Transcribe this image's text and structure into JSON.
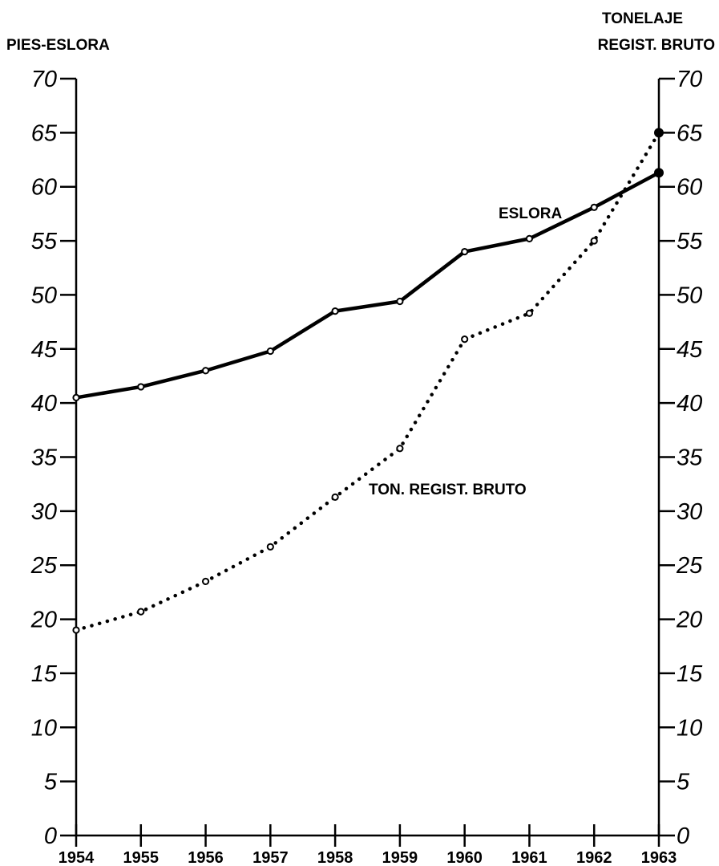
{
  "chart_data": {
    "type": "line",
    "title": "",
    "y_left_label": "PIES-ESLORA",
    "y_right_label_lines": [
      "TONELAJE",
      "REGIST. BRUTO"
    ],
    "categories": [
      "1954",
      "1955",
      "1956",
      "1957",
      "1958",
      "1959",
      "1960",
      "1961",
      "1962",
      "1963"
    ],
    "y_ticks": [
      "0",
      "5",
      "10",
      "15",
      "20",
      "25",
      "30",
      "35",
      "40",
      "45",
      "50",
      "55",
      "60",
      "65",
      "70"
    ],
    "ylim": [
      0,
      70
    ],
    "series": [
      {
        "name": "ESLORA",
        "style": "solid",
        "values": [
          40.5,
          41.5,
          43.0,
          44.8,
          48.5,
          49.4,
          54.0,
          55.2,
          58.1,
          61.3
        ]
      },
      {
        "name": "TON. REGIST. BRUTO",
        "style": "dotted",
        "values": [
          19.0,
          20.7,
          23.5,
          26.7,
          31.3,
          35.8,
          45.9,
          48.3,
          55.0,
          65.0
        ]
      }
    ],
    "grid": false,
    "colors": {
      "line": "#000000",
      "marker_fill": "#ffffff"
    }
  }
}
